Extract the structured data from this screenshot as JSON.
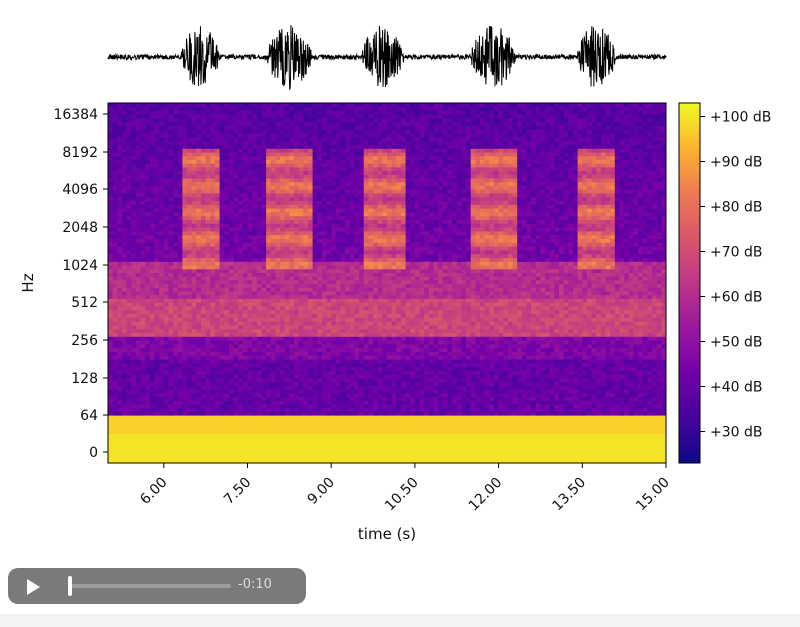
{
  "chart_data": [
    {
      "type": "line",
      "name": "waveform",
      "x_range": [
        5.0,
        15.0
      ],
      "bursts_s": [
        [
          6.3,
          7.0
        ],
        [
          7.85,
          8.65
        ],
        [
          9.55,
          10.3
        ],
        [
          11.5,
          12.3
        ],
        [
          13.4,
          14.1
        ]
      ]
    },
    {
      "type": "heatmap",
      "xlabel": "time (s)",
      "ylabel": "Hz",
      "x_range": [
        5.0,
        15.0
      ],
      "x_ticks": [
        "6.00",
        "7.50",
        "9.00",
        "10.50",
        "12.00",
        "13.50",
        "15.00"
      ],
      "y_ticks": [
        "0",
        "64",
        "128",
        "256",
        "512",
        "1024",
        "2048",
        "4096",
        "8192",
        "16384"
      ],
      "colorscale": "plasma",
      "colorbar_range_db": [
        23,
        103
      ],
      "colorbar_ticks": [
        "+30 dB",
        "+40 dB",
        "+50 dB",
        "+60 dB",
        "+70 dB",
        "+80 dB",
        "+90 dB",
        "+100 dB"
      ],
      "approx_band_levels_db": [
        {
          "band_hz": [
            0,
            32
          ],
          "db": 100
        },
        {
          "band_hz": [
            32,
            64
          ],
          "db": 97
        },
        {
          "band_hz": [
            64,
            180
          ],
          "db": 40
        },
        {
          "band_hz": [
            180,
            256
          ],
          "db": 46
        },
        {
          "band_hz": [
            256,
            512
          ],
          "db": 68
        },
        {
          "band_hz": [
            512,
            1024
          ],
          "db": 60
        },
        {
          "band_hz": [
            1024,
            16384
          ],
          "db": 43
        }
      ],
      "bird_call_segments_s": [
        [
          6.3,
          7.0
        ],
        [
          7.85,
          8.65
        ],
        [
          9.55,
          10.3
        ],
        [
          11.5,
          12.3
        ],
        [
          13.4,
          14.1
        ]
      ],
      "bird_call_band_hz": [
        900,
        8192
      ],
      "bird_call_peak_db": 82
    }
  ],
  "player": {
    "time_remaining": "-0:10",
    "progress": 0.0
  },
  "colors": {
    "waveform": "#000000",
    "player_bg": "#7a7a7a"
  }
}
